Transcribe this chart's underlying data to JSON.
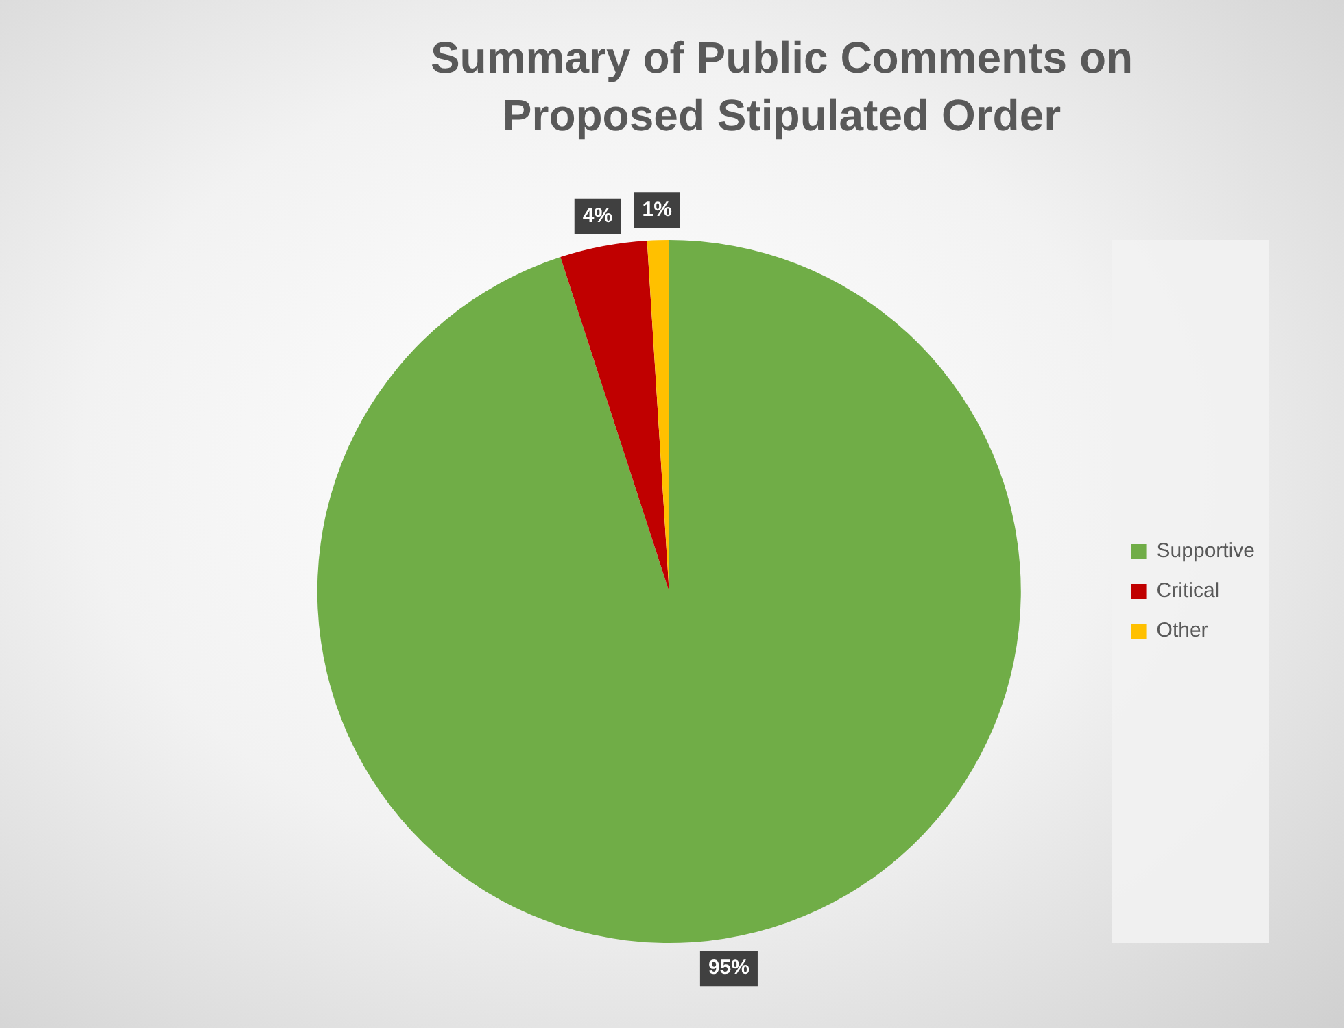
{
  "chart_data": {
    "type": "pie",
    "title": "Summary of Public Comments on Proposed Stipulated Order",
    "categories": [
      "Supportive",
      "Critical",
      "Other"
    ],
    "values": [
      95,
      4,
      1
    ],
    "colors": [
      "#70ad47",
      "#c00000",
      "#ffc000"
    ],
    "value_labels": [
      "95%",
      "4%",
      "1%"
    ],
    "legend": "right"
  }
}
